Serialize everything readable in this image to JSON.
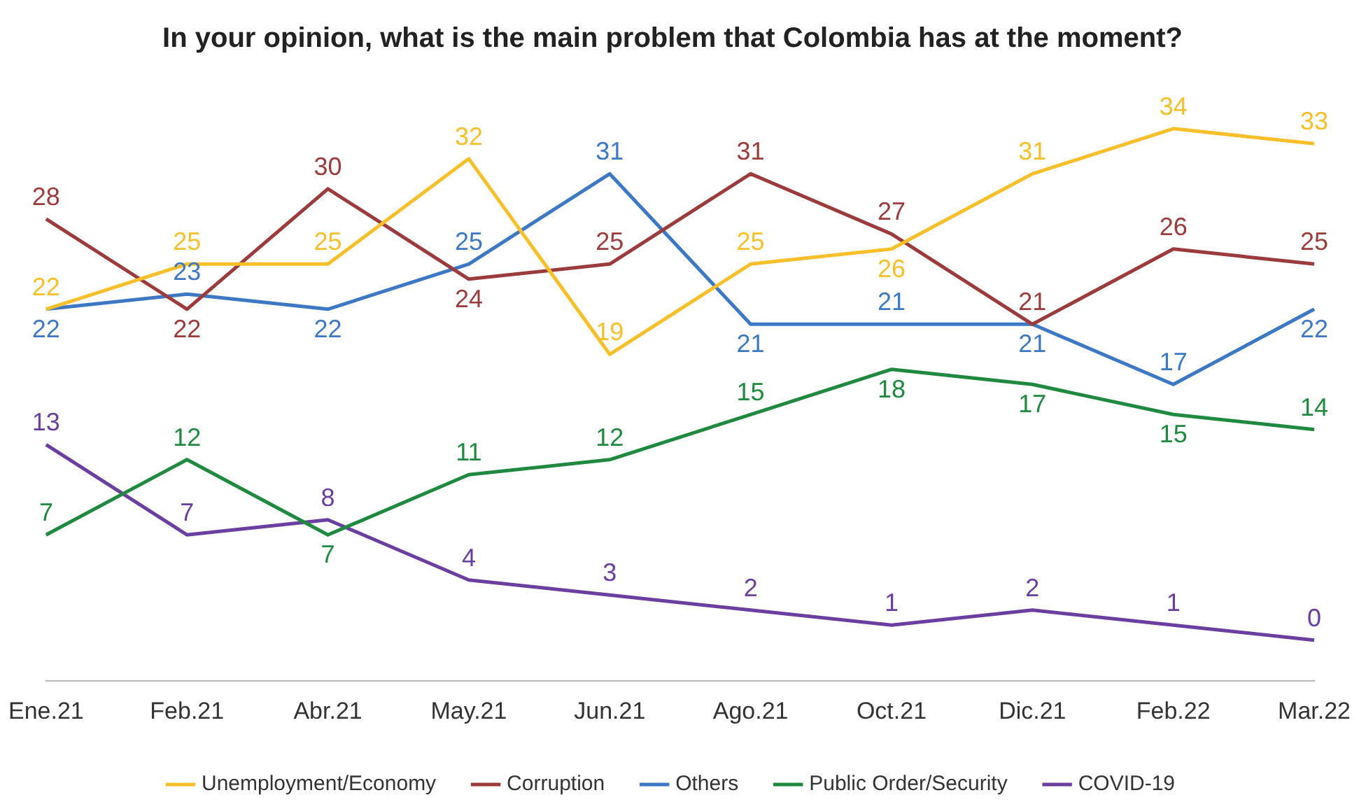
{
  "chart_data": {
    "type": "line",
    "title": "In your opinion, what is the main problem that Colombia has at the moment?",
    "categories": [
      "Ene.21",
      "Feb.21",
      "Abr.21",
      "May.21",
      "Jun.21",
      "Ago.21",
      "Oct.21",
      "Dic.21",
      "Feb.22",
      "Mar.22"
    ],
    "series": [
      {
        "name": "Unemployment/Economy",
        "color": "#f7bf2a",
        "values": [
          22,
          25,
          25,
          32,
          19,
          25,
          26,
          31,
          34,
          33
        ]
      },
      {
        "name": "Corruption",
        "color": "#9b3b3b",
        "values": [
          28,
          22,
          30,
          24,
          25,
          31,
          27,
          21,
          26,
          25
        ]
      },
      {
        "name": "Others",
        "color": "#3c78c3",
        "values": [
          22,
          23,
          22,
          25,
          31,
          21,
          21,
          21,
          17,
          22
        ]
      },
      {
        "name": "Public Order/Security",
        "color": "#1f8a3f",
        "values": [
          7,
          12,
          7,
          11,
          12,
          15,
          18,
          17,
          15,
          14
        ]
      },
      {
        "name": "COVID-19",
        "color": "#6a3fa0",
        "values": [
          13,
          7,
          8,
          4,
          3,
          2,
          1,
          2,
          1,
          0
        ]
      }
    ],
    "data_labels": true,
    "grid": false,
    "legend": "bottom",
    "marker": "none",
    "line_style": "solid"
  }
}
